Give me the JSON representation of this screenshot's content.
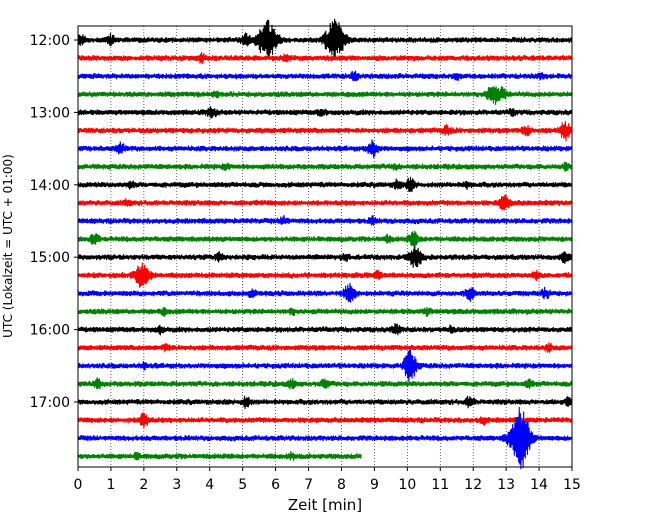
{
  "chart_data": {
    "type": "line",
    "title": "",
    "xlabel": "Zeit  [min]",
    "ylabel": "UTC (Lokalzeit = UTC + 01:00)",
    "xlim": [
      0,
      15
    ],
    "x_ticks": [
      "0",
      "1",
      "2",
      "3",
      "4",
      "5",
      "6",
      "7",
      "8",
      "9",
      "10",
      "11",
      "12",
      "13",
      "14",
      "15"
    ],
    "y_ticks": [
      {
        "label": "12:00",
        "row": 0
      },
      {
        "label": "13:00",
        "row": 4
      },
      {
        "label": "14:00",
        "row": 8
      },
      {
        "label": "15:00",
        "row": 12
      },
      {
        "label": "16:00",
        "row": 16
      },
      {
        "label": "17:00",
        "row": 20
      }
    ],
    "grid": "vertical-dotted",
    "legend": "none",
    "row_minutes": 15,
    "trace_colors": [
      "#000000",
      "#ff0000",
      "#0000ff",
      "#008000"
    ],
    "rows": [
      {
        "start": "12:00",
        "events": [
          [
            0.1,
            0.5
          ],
          [
            1.0,
            0.5
          ],
          [
            5.1,
            0.6
          ],
          [
            5.75,
            2.4
          ],
          [
            7.8,
            2.4
          ]
        ]
      },
      {
        "start": "12:15",
        "events": [
          [
            3.7,
            0.3
          ],
          [
            3.8,
            0.35
          ],
          [
            6.3,
            0.3
          ]
        ]
      },
      {
        "start": "12:30",
        "events": [
          [
            8.4,
            0.5
          ],
          [
            11.5,
            0.35
          ],
          [
            14.1,
            0.3
          ]
        ]
      },
      {
        "start": "12:45",
        "events": [
          [
            4.2,
            0.3
          ],
          [
            12.6,
            1.2
          ],
          [
            12.9,
            0.6
          ]
        ]
      },
      {
        "start": "13:00",
        "events": [
          [
            4.05,
            0.6
          ],
          [
            7.4,
            0.4
          ],
          [
            13.2,
            0.3
          ]
        ]
      },
      {
        "start": "13:15",
        "events": [
          [
            11.2,
            0.5
          ],
          [
            13.6,
            0.6
          ],
          [
            14.8,
            1.0
          ]
        ]
      },
      {
        "start": "13:30",
        "events": [
          [
            1.3,
            0.6
          ],
          [
            8.95,
            0.9
          ]
        ]
      },
      {
        "start": "13:45",
        "events": [
          [
            4.5,
            0.3
          ],
          [
            9.6,
            0.3
          ],
          [
            14.8,
            0.3
          ]
        ]
      },
      {
        "start": "14:00",
        "events": [
          [
            1.6,
            0.35
          ],
          [
            9.7,
            0.5
          ],
          [
            10.1,
            0.7
          ],
          [
            11.8,
            0.3
          ]
        ]
      },
      {
        "start": "14:15",
        "events": [
          [
            1.5,
            0.3
          ],
          [
            12.95,
            0.9
          ]
        ]
      },
      {
        "start": "14:30",
        "events": [
          [
            6.25,
            0.45
          ],
          [
            8.95,
            0.4
          ]
        ]
      },
      {
        "start": "14:45",
        "events": [
          [
            0.5,
            0.6
          ],
          [
            9.4,
            0.35
          ],
          [
            10.2,
            0.8
          ]
        ]
      },
      {
        "start": "15:00",
        "events": [
          [
            4.3,
            0.5
          ],
          [
            8.1,
            0.4
          ],
          [
            10.25,
            1.3
          ],
          [
            14.8,
            0.6
          ]
        ]
      },
      {
        "start": "15:15",
        "events": [
          [
            1.95,
            1.6
          ],
          [
            9.1,
            0.35
          ],
          [
            13.9,
            0.4
          ]
        ]
      },
      {
        "start": "15:30",
        "events": [
          [
            5.3,
            0.5
          ],
          [
            8.25,
            1.1
          ],
          [
            11.9,
            0.7
          ],
          [
            14.2,
            0.5
          ]
        ]
      },
      {
        "start": "15:45",
        "events": [
          [
            2.6,
            0.3
          ],
          [
            6.5,
            0.3
          ],
          [
            10.6,
            0.35
          ]
        ]
      },
      {
        "start": "16:00",
        "events": [
          [
            2.5,
            0.35
          ],
          [
            9.65,
            0.6
          ],
          [
            11.3,
            0.3
          ]
        ]
      },
      {
        "start": "16:15",
        "events": [
          [
            2.7,
            0.4
          ],
          [
            14.3,
            0.4
          ]
        ]
      },
      {
        "start": "16:30",
        "events": [
          [
            2.0,
            0.3
          ],
          [
            10.1,
            1.3
          ],
          [
            10.05,
            0.8
          ]
        ]
      },
      {
        "start": "16:45",
        "events": [
          [
            0.6,
            0.5
          ],
          [
            6.5,
            0.5
          ],
          [
            7.5,
            0.5
          ],
          [
            13.7,
            0.4
          ]
        ]
      },
      {
        "start": "17:00",
        "events": [
          [
            5.1,
            0.6
          ],
          [
            11.9,
            0.6
          ],
          [
            14.9,
            0.4
          ]
        ]
      },
      {
        "start": "17:15",
        "events": [
          [
            2.0,
            0.8
          ],
          [
            12.3,
            0.4
          ]
        ]
      },
      {
        "start": "17:30",
        "events": [
          [
            13.4,
            2.6
          ],
          [
            13.5,
            1.4
          ]
        ]
      },
      {
        "start": "17:45",
        "events": [
          [
            1.8,
            0.3
          ],
          [
            6.5,
            0.3
          ]
        ],
        "end": 8.6
      }
    ]
  }
}
